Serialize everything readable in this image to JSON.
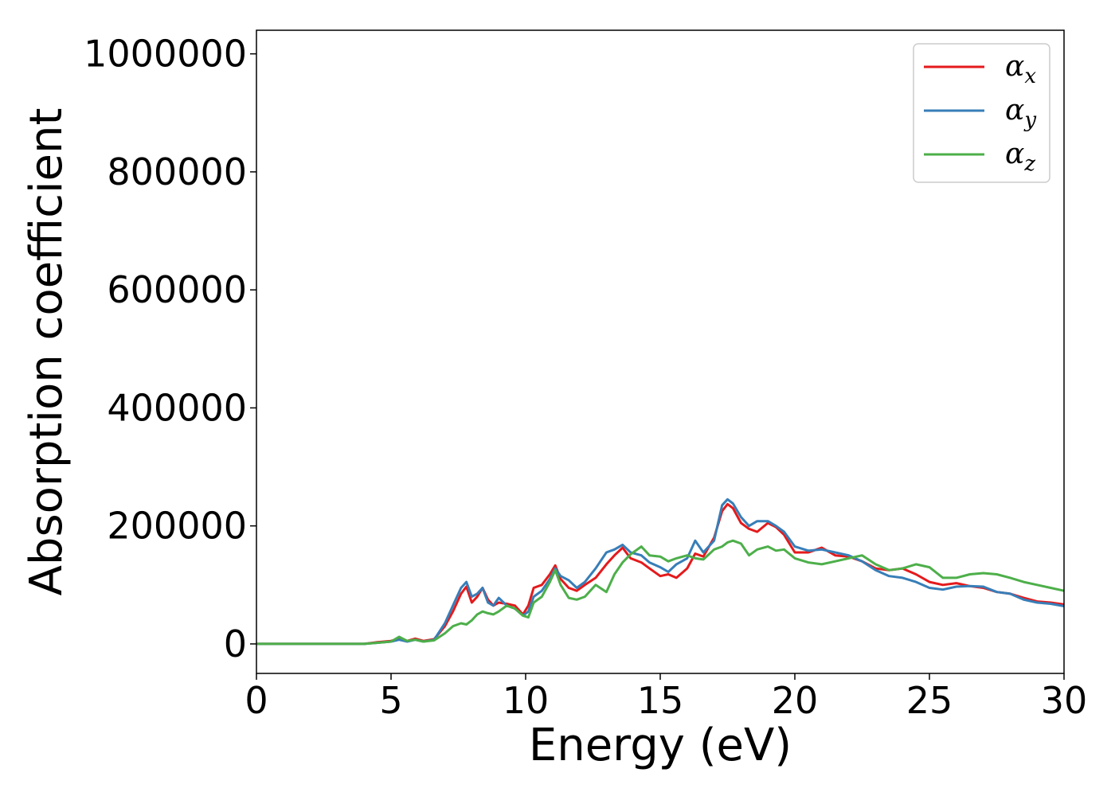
{
  "chart_data": {
    "type": "line",
    "title": "",
    "xlabel": "Energy (eV)",
    "ylabel": "Absorption coefficient",
    "xlim": [
      0,
      30
    ],
    "ylim": [
      -50000,
      1040000
    ],
    "xticks": [
      0,
      5,
      10,
      15,
      20,
      25,
      30
    ],
    "xtick_labels": [
      "0",
      "5",
      "10",
      "15",
      "20",
      "25",
      "30"
    ],
    "yticks": [
      0,
      200000,
      400000,
      600000,
      800000,
      1000000
    ],
    "ytick_labels": [
      "0",
      "200000",
      "400000",
      "600000",
      "800000",
      "1000000"
    ],
    "grid": false,
    "legend_position": "top-right",
    "series": [
      {
        "name": "αx",
        "legend_symbol": "α",
        "legend_subscript": "x",
        "color": "#e41a1c",
        "x": [
          0,
          4,
          4.5,
          5,
          5.3,
          5.6,
          5.9,
          6.2,
          6.6,
          7.0,
          7.3,
          7.6,
          7.8,
          8.0,
          8.2,
          8.4,
          8.6,
          8.8,
          9.0,
          9.3,
          9.6,
          9.9,
          10.1,
          10.3,
          10.6,
          10.9,
          11.1,
          11.3,
          11.6,
          11.9,
          12.2,
          12.6,
          13.0,
          13.3,
          13.6,
          13.9,
          14.3,
          14.6,
          15.0,
          15.3,
          15.6,
          16.0,
          16.3,
          16.6,
          17.0,
          17.3,
          17.5,
          17.7,
          18.0,
          18.3,
          18.6,
          19.0,
          19.3,
          19.6,
          20.0,
          20.5,
          21.0,
          21.5,
          22.0,
          22.5,
          23.0,
          23.5,
          24.0,
          24.5,
          25.0,
          25.5,
          26.0,
          26.5,
          27.0,
          27.5,
          28.0,
          28.5,
          29.0,
          29.5,
          30.0
        ],
        "y": [
          0,
          0,
          3000,
          5000,
          9000,
          5000,
          9000,
          5000,
          8000,
          30000,
          55000,
          85000,
          97000,
          70000,
          80000,
          95000,
          75000,
          65000,
          70000,
          68000,
          65000,
          50000,
          65000,
          95000,
          100000,
          118000,
          133000,
          110000,
          95000,
          90000,
          100000,
          112000,
          135000,
          150000,
          163000,
          145000,
          138000,
          128000,
          115000,
          118000,
          112000,
          128000,
          153000,
          148000,
          180000,
          225000,
          237000,
          230000,
          205000,
          195000,
          190000,
          205000,
          198000,
          185000,
          155000,
          155000,
          163000,
          150000,
          148000,
          140000,
          128000,
          125000,
          128000,
          118000,
          105000,
          100000,
          103000,
          98000,
          95000,
          88000,
          85000,
          78000,
          72000,
          70000,
          67000
        ]
      },
      {
        "name": "αy",
        "legend_symbol": "α",
        "legend_subscript": "y",
        "color": "#377eb8",
        "x": [
          0,
          4,
          4.5,
          5,
          5.3,
          5.6,
          5.9,
          6.2,
          6.6,
          7.0,
          7.3,
          7.6,
          7.8,
          8.0,
          8.2,
          8.4,
          8.6,
          8.8,
          9.0,
          9.3,
          9.6,
          9.9,
          10.1,
          10.3,
          10.6,
          10.9,
          11.1,
          11.3,
          11.6,
          11.9,
          12.2,
          12.6,
          13.0,
          13.3,
          13.6,
          13.9,
          14.3,
          14.6,
          15.0,
          15.3,
          15.6,
          16.0,
          16.3,
          16.6,
          17.0,
          17.3,
          17.5,
          17.7,
          18.0,
          18.3,
          18.6,
          19.0,
          19.3,
          19.6,
          20.0,
          20.5,
          21.0,
          21.5,
          22.0,
          22.5,
          23.0,
          23.5,
          24.0,
          24.5,
          25.0,
          25.5,
          26.0,
          26.5,
          27.0,
          27.5,
          28.0,
          28.5,
          29.0,
          29.5,
          30.0
        ],
        "y": [
          0,
          0,
          2000,
          4000,
          7000,
          4000,
          7000,
          4000,
          7000,
          35000,
          65000,
          95000,
          105000,
          80000,
          85000,
          95000,
          70000,
          65000,
          78000,
          65000,
          60000,
          48000,
          55000,
          80000,
          90000,
          110000,
          128000,
          115000,
          108000,
          95000,
          105000,
          128000,
          155000,
          160000,
          168000,
          155000,
          150000,
          138000,
          130000,
          122000,
          135000,
          145000,
          175000,
          155000,
          175000,
          235000,
          245000,
          238000,
          215000,
          200000,
          208000,
          208000,
          200000,
          190000,
          165000,
          158000,
          160000,
          155000,
          150000,
          140000,
          125000,
          115000,
          112000,
          105000,
          95000,
          92000,
          97000,
          98000,
          97000,
          88000,
          85000,
          75000,
          70000,
          68000,
          64000
        ]
      },
      {
        "name": "αz",
        "legend_symbol": "α",
        "legend_subscript": "z",
        "color": "#4daf4a",
        "x": [
          0,
          4,
          4.5,
          5,
          5.3,
          5.6,
          5.9,
          6.2,
          6.6,
          7.0,
          7.3,
          7.6,
          7.8,
          8.0,
          8.2,
          8.4,
          8.6,
          8.8,
          9.0,
          9.3,
          9.6,
          9.9,
          10.1,
          10.3,
          10.6,
          10.9,
          11.1,
          11.3,
          11.6,
          11.9,
          12.2,
          12.6,
          13.0,
          13.3,
          13.6,
          13.9,
          14.3,
          14.6,
          15.0,
          15.3,
          15.6,
          16.0,
          16.3,
          16.6,
          17.0,
          17.3,
          17.5,
          17.7,
          18.0,
          18.3,
          18.6,
          19.0,
          19.3,
          19.6,
          20.0,
          20.5,
          21.0,
          21.5,
          22.0,
          22.5,
          23.0,
          23.5,
          24.0,
          24.5,
          25.0,
          25.5,
          26.0,
          26.5,
          27.0,
          27.5,
          28.0,
          28.5,
          29.0,
          29.5,
          30.0
        ],
        "y": [
          0,
          0,
          2000,
          4000,
          12000,
          5000,
          7000,
          4000,
          6000,
          18000,
          30000,
          35000,
          33000,
          40000,
          50000,
          55000,
          52000,
          50000,
          55000,
          65000,
          60000,
          48000,
          45000,
          70000,
          80000,
          105000,
          125000,
          100000,
          78000,
          75000,
          80000,
          100000,
          88000,
          118000,
          138000,
          152000,
          165000,
          150000,
          148000,
          140000,
          145000,
          150000,
          145000,
          143000,
          160000,
          165000,
          172000,
          175000,
          170000,
          150000,
          160000,
          165000,
          158000,
          160000,
          145000,
          138000,
          135000,
          140000,
          145000,
          150000,
          135000,
          125000,
          128000,
          135000,
          130000,
          112000,
          112000,
          118000,
          120000,
          118000,
          112000,
          105000,
          100000,
          95000,
          90000
        ]
      }
    ]
  }
}
